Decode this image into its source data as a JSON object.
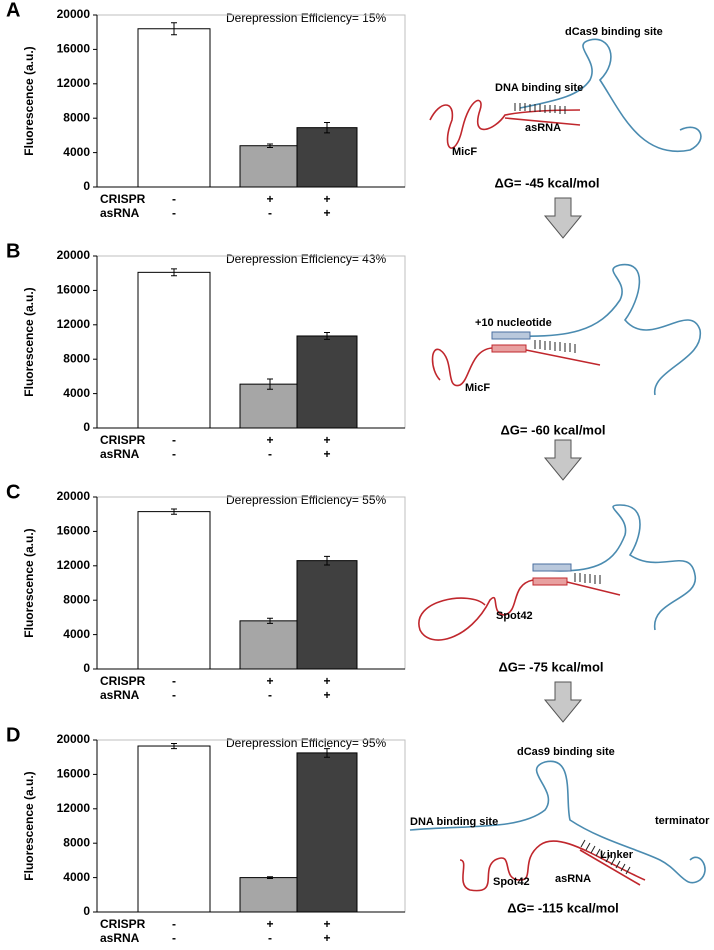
{
  "chart_data": [
    {
      "type": "bar",
      "panel": "A",
      "annotation": "Derepression Efficiency= 15%",
      "ylabel": "Fluorescence (a.u.)",
      "ylim": [
        0,
        20000
      ],
      "yticks": [
        0,
        4000,
        8000,
        12000,
        16000,
        20000
      ],
      "values": [
        18400,
        4800,
        6900
      ],
      "errors": [
        700,
        200,
        600
      ],
      "colors": [
        "#ffffff",
        "#a6a6a6",
        "#404040"
      ],
      "conditions": [
        {
          "name": "CRISPR",
          "values": [
            "-",
            "+",
            "+"
          ]
        },
        {
          "name": "asRNA",
          "values": [
            "-",
            "-",
            "+"
          ]
        }
      ]
    },
    {
      "type": "bar",
      "panel": "B",
      "annotation": "Derepression Efficiency= 43%",
      "ylabel": "Fluorescence (a.u.)",
      "ylim": [
        0,
        20000
      ],
      "yticks": [
        0,
        4000,
        8000,
        12000,
        16000,
        20000
      ],
      "values": [
        18100,
        5100,
        10700
      ],
      "errors": [
        400,
        600,
        400
      ],
      "colors": [
        "#ffffff",
        "#a6a6a6",
        "#404040"
      ],
      "conditions": [
        {
          "name": "CRISPR",
          "values": [
            "-",
            "+",
            "+"
          ]
        },
        {
          "name": "asRNA",
          "values": [
            "-",
            "-",
            "+"
          ]
        }
      ]
    },
    {
      "type": "bar",
      "panel": "C",
      "annotation": "Derepression Efficiency= 55%",
      "ylabel": "Fluorescence (a.u.)",
      "ylim": [
        0,
        20000
      ],
      "yticks": [
        0,
        4000,
        8000,
        12000,
        16000,
        20000
      ],
      "values": [
        18300,
        5600,
        12600
      ],
      "errors": [
        300,
        300,
        500
      ],
      "colors": [
        "#ffffff",
        "#a6a6a6",
        "#404040"
      ],
      "conditions": [
        {
          "name": "CRISPR",
          "values": [
            "-",
            "+",
            "+"
          ]
        },
        {
          "name": "asRNA",
          "values": [
            "-",
            "-",
            "+"
          ]
        }
      ]
    },
    {
      "type": "bar",
      "panel": "D",
      "annotation": "Derepression Efficiency= 95%",
      "ylabel": "Fluorescence (a.u.)",
      "ylim": [
        0,
        20000
      ],
      "yticks": [
        0,
        4000,
        8000,
        12000,
        16000,
        20000
      ],
      "values": [
        19300,
        4000,
        18500
      ],
      "errors": [
        300,
        100,
        500
      ],
      "colors": [
        "#ffffff",
        "#a6a6a6",
        "#404040"
      ],
      "conditions": [
        {
          "name": "CRISPR",
          "values": [
            "-",
            "+",
            "+"
          ]
        },
        {
          "name": "asRNA",
          "values": [
            "-",
            "-",
            "+"
          ]
        }
      ]
    }
  ],
  "diagrams": [
    {
      "labels": [
        "dCas9 binding site",
        "DNA binding site",
        "asRNA",
        "MicF"
      ],
      "energy": "ΔG= -45 kcal/mol"
    },
    {
      "labels": [
        "+10 nucleotide",
        "MicF"
      ],
      "energy": "ΔG= -60 kcal/mol"
    },
    {
      "labels": [
        "Spot42"
      ],
      "energy": "ΔG= -75 kcal/mol"
    },
    {
      "labels": [
        "dCas9 binding site",
        "DNA binding site",
        "Linker",
        "terminator",
        "asRNA",
        "Spot42"
      ],
      "energy": "ΔG= -115 kcal/mol"
    }
  ]
}
